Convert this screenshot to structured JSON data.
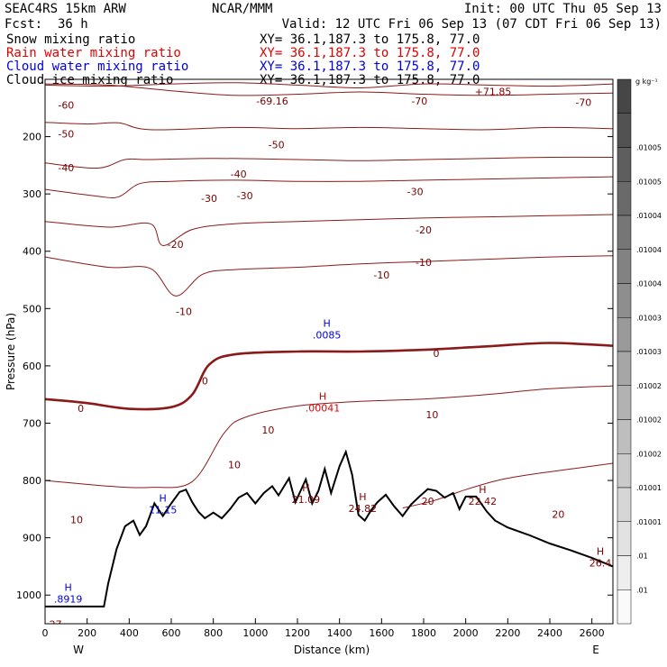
{
  "header": {
    "model": "SEAC4RS 15km ARW",
    "org": "NCAR/MMM",
    "init": "Init: 00 UTC Thu 05 Sep 13",
    "fcst_label": "Fcst:",
    "fcst_value": "36 h",
    "valid": "Valid: 12 UTC Fri 06 Sep 13 (07 CDT Fri 06 Sep 13)",
    "fields": [
      {
        "name": "Snow mixing ratio",
        "xy": "XY=  36.1,187.3 to 175.8, 77.0",
        "color": "#000000"
      },
      {
        "name": "Rain water mixing ratio",
        "xy": "XY=  36.1,187.3 to 175.8, 77.0",
        "color": "#e00000"
      },
      {
        "name": "Cloud water mixing ratio",
        "xy": "XY=  36.1,187.3 to 175.8, 77.0",
        "color": "#0000e0"
      },
      {
        "name": "Cloud ice mixing ratio",
        "xy": "XY=  36.1,187.3 to 175.8, 77.0",
        "color": "#000000"
      }
    ]
  },
  "chart_data": {
    "type": "cross-section contour",
    "xlabel": "Distance (km)",
    "ylabel": "Pressure (hPa)",
    "x_ticks": [
      0,
      200,
      400,
      600,
      800,
      1000,
      1200,
      1400,
      1600,
      1800,
      2000,
      2200,
      2400,
      2600
    ],
    "y_ticks": [
      200,
      300,
      400,
      500,
      600,
      700,
      800,
      900,
      1000
    ],
    "xlim": [
      0,
      2700
    ],
    "ylim": [
      1050,
      100
    ],
    "y_scale": "linear",
    "end_labels": {
      "left": "W",
      "right": "E"
    },
    "colorbar": {
      "unit_label": "g kg⁻¹",
      "labels": [
        ".01005",
        ".01005",
        ".01004",
        ".01004",
        ".01004",
        ".01003",
        ".01003",
        ".01002",
        ".01002",
        ".01002",
        ".01001",
        ".01001",
        ".01",
        ".01"
      ]
    },
    "temperature_contours": [
      {
        "label": "-70",
        "points": [
          [
            0,
            110
          ],
          [
            300,
            112
          ],
          [
            600,
            108
          ],
          [
            900,
            106
          ],
          [
            1200,
            110
          ],
          [
            1500,
            115
          ],
          [
            1800,
            108
          ],
          [
            2100,
            110
          ],
          [
            2400,
            112
          ],
          [
            2700,
            108
          ]
        ]
      },
      {
        "label": "-60",
        "points": [
          [
            0,
            108
          ],
          [
            300,
            110
          ],
          [
            600,
            120
          ],
          [
            900,
            128
          ],
          [
            1200,
            126
          ],
          [
            1500,
            122
          ],
          [
            1800,
            126
          ],
          [
            2100,
            128
          ],
          [
            2400,
            126
          ],
          [
            2700,
            124
          ]
        ]
      },
      {
        "label": "-50",
        "points": [
          [
            0,
            175
          ],
          [
            200,
            178
          ],
          [
            350,
            176
          ],
          [
            500,
            188
          ],
          [
            900,
            184
          ],
          [
            1200,
            186
          ],
          [
            1500,
            184
          ],
          [
            1800,
            186
          ],
          [
            2100,
            188
          ],
          [
            2400,
            184
          ],
          [
            2700,
            186
          ]
        ]
      },
      {
        "label": "-40",
        "points": [
          [
            0,
            246
          ],
          [
            250,
            255
          ],
          [
            380,
            240
          ],
          [
            500,
            240
          ],
          [
            800,
            238
          ],
          [
            1200,
            240
          ],
          [
            1500,
            242
          ],
          [
            1800,
            240
          ],
          [
            2100,
            238
          ],
          [
            2400,
            236
          ],
          [
            2700,
            236
          ]
        ]
      },
      {
        "label": "-30",
        "points": [
          [
            0,
            292
          ],
          [
            250,
            304
          ],
          [
            350,
            305
          ],
          [
            450,
            282
          ],
          [
            600,
            278
          ],
          [
            900,
            276
          ],
          [
            1200,
            278
          ],
          [
            1500,
            278
          ],
          [
            1800,
            276
          ],
          [
            2100,
            274
          ],
          [
            2400,
            272
          ],
          [
            2700,
            270
          ]
        ]
      },
      {
        "label": "-20",
        "points": [
          [
            0,
            348
          ],
          [
            300,
            358
          ],
          [
            500,
            352
          ],
          [
            560,
            390
          ],
          [
            700,
            362
          ],
          [
            900,
            352
          ],
          [
            1200,
            348
          ],
          [
            1500,
            345
          ],
          [
            1800,
            342
          ],
          [
            2100,
            340
          ],
          [
            2400,
            338
          ],
          [
            2700,
            336
          ]
        ]
      },
      {
        "label": "-10",
        "points": [
          [
            0,
            410
          ],
          [
            300,
            428
          ],
          [
            500,
            430
          ],
          [
            620,
            478
          ],
          [
            750,
            440
          ],
          [
            900,
            432
          ],
          [
            1200,
            428
          ],
          [
            1500,
            422
          ],
          [
            1800,
            418
          ],
          [
            2100,
            414
          ],
          [
            2400,
            410
          ],
          [
            2700,
            408
          ]
        ]
      },
      {
        "label": "0",
        "points": [
          [
            0,
            658
          ],
          [
            200,
            665
          ],
          [
            400,
            675
          ],
          [
            600,
            672
          ],
          [
            700,
            650
          ],
          [
            780,
            598
          ],
          [
            900,
            580
          ],
          [
            1200,
            575
          ],
          [
            1500,
            575
          ],
          [
            1800,
            572
          ],
          [
            2100,
            566
          ],
          [
            2400,
            560
          ],
          [
            2700,
            565
          ]
        ]
      },
      {
        "label": "10",
        "points": [
          [
            0,
            800
          ],
          [
            300,
            810
          ],
          [
            500,
            812
          ],
          [
            700,
            802
          ],
          [
            850,
            718
          ],
          [
            950,
            690
          ],
          [
            1200,
            670
          ],
          [
            1500,
            662
          ],
          [
            1800,
            658
          ],
          [
            2100,
            650
          ],
          [
            2400,
            640
          ],
          [
            2700,
            635
          ]
        ]
      },
      {
        "label": "20",
        "points": [
          [
            1700,
            848
          ],
          [
            1850,
            835
          ],
          [
            2000,
            816
          ],
          [
            2150,
            800
          ],
          [
            2300,
            790
          ],
          [
            2500,
            780
          ],
          [
            2700,
            770
          ]
        ]
      }
    ],
    "temperature_labels": [
      {
        "text": "-60",
        "x": 100,
        "p": 145
      },
      {
        "text": "-69.16",
        "x": 1080,
        "p": 138
      },
      {
        "text": "-70",
        "x": 1780,
        "p": 138
      },
      {
        "text": "-70",
        "x": 2560,
        "p": 140
      },
      {
        "text": "-50",
        "x": 100,
        "p": 195
      },
      {
        "text": "-50",
        "x": 1100,
        "p": 214
      },
      {
        "text": "-40",
        "x": 100,
        "p": 254
      },
      {
        "text": "-40",
        "x": 920,
        "p": 265
      },
      {
        "text": "-30",
        "x": 780,
        "p": 308
      },
      {
        "text": "-30",
        "x": 950,
        "p": 303
      },
      {
        "text": "-30",
        "x": 1760,
        "p": 296
      },
      {
        "text": "-20",
        "x": 620,
        "p": 388
      },
      {
        "text": "-20",
        "x": 1800,
        "p": 363
      },
      {
        "text": "-10",
        "x": 660,
        "p": 505
      },
      {
        "text": "-10",
        "x": 1600,
        "p": 441
      },
      {
        "text": "-10",
        "x": 1800,
        "p": 419
      },
      {
        "text": "0",
        "x": 170,
        "p": 674
      },
      {
        "text": "0",
        "x": 760,
        "p": 626
      },
      {
        "text": "0",
        "x": 1860,
        "p": 578
      },
      {
        "text": "10",
        "x": 150,
        "p": 868
      },
      {
        "text": "10",
        "x": 900,
        "p": 772
      },
      {
        "text": "10",
        "x": 1060,
        "p": 712
      },
      {
        "text": "10",
        "x": 1840,
        "p": 685
      },
      {
        "text": "20",
        "x": 1820,
        "p": 836
      },
      {
        "text": "20",
        "x": 2440,
        "p": 859
      }
    ],
    "terrain": [
      [
        0,
        1020
      ],
      [
        280,
        1020
      ],
      [
        300,
        980
      ],
      [
        340,
        920
      ],
      [
        380,
        880
      ],
      [
        420,
        870
      ],
      [
        450,
        895
      ],
      [
        480,
        880
      ],
      [
        500,
        860
      ],
      [
        520,
        840
      ],
      [
        560,
        862
      ],
      [
        600,
        840
      ],
      [
        640,
        820
      ],
      [
        670,
        816
      ],
      [
        700,
        838
      ],
      [
        730,
        855
      ],
      [
        760,
        866
      ],
      [
        800,
        856
      ],
      [
        840,
        866
      ],
      [
        880,
        850
      ],
      [
        920,
        830
      ],
      [
        960,
        822
      ],
      [
        1000,
        840
      ],
      [
        1040,
        822
      ],
      [
        1080,
        810
      ],
      [
        1110,
        826
      ],
      [
        1160,
        796
      ],
      [
        1190,
        838
      ],
      [
        1240,
        798
      ],
      [
        1270,
        840
      ],
      [
        1300,
        818
      ],
      [
        1330,
        780
      ],
      [
        1360,
        822
      ],
      [
        1400,
        775
      ],
      [
        1430,
        750
      ],
      [
        1460,
        790
      ],
      [
        1490,
        860
      ],
      [
        1520,
        870
      ],
      [
        1550,
        852
      ],
      [
        1580,
        838
      ],
      [
        1620,
        825
      ],
      [
        1660,
        845
      ],
      [
        1700,
        862
      ],
      [
        1740,
        842
      ],
      [
        1780,
        828
      ],
      [
        1820,
        815
      ],
      [
        1860,
        818
      ],
      [
        1900,
        830
      ],
      [
        1940,
        822
      ],
      [
        1970,
        850
      ],
      [
        2000,
        828
      ],
      [
        2050,
        828
      ],
      [
        2100,
        854
      ],
      [
        2140,
        870
      ],
      [
        2200,
        882
      ],
      [
        2300,
        895
      ],
      [
        2400,
        910
      ],
      [
        2500,
        922
      ],
      [
        2600,
        935
      ],
      [
        2700,
        950
      ]
    ],
    "extrema": [
      {
        "letter": "H",
        "value": ".0085",
        "x": 1340,
        "p": 535,
        "color": "#0000e0"
      },
      {
        "letter": "H",
        "value": ".00041",
        "x": 1320,
        "p": 662,
        "color": "#e00000"
      },
      {
        "letter": "H",
        "value": "11.15",
        "x": 560,
        "p": 840,
        "color": "#0000e0"
      },
      {
        "letter": "H",
        "value": "21.09",
        "x": 1240,
        "p": 822,
        "color": "#800000"
      },
      {
        "letter": "H",
        "value": "24.82",
        "x": 1510,
        "p": 838,
        "color": "#800000"
      },
      {
        "letter": "H",
        "value": "22.42",
        "x": 2080,
        "p": 825,
        "color": "#800000"
      },
      {
        "letter": "H",
        "value": "26.4",
        "x": 2640,
        "p": 933,
        "color": "#800000"
      },
      {
        "letter": "H",
        "value": ".8919",
        "x": 110,
        "p": 996,
        "color": "#0000e0"
      },
      {
        "letter": "",
        "value": "+71.85",
        "x": 2130,
        "p": 110,
        "color": "#800000"
      },
      {
        "letter": "",
        "value": "27",
        "x": 50,
        "p": 1040,
        "color": "#800000"
      }
    ]
  }
}
